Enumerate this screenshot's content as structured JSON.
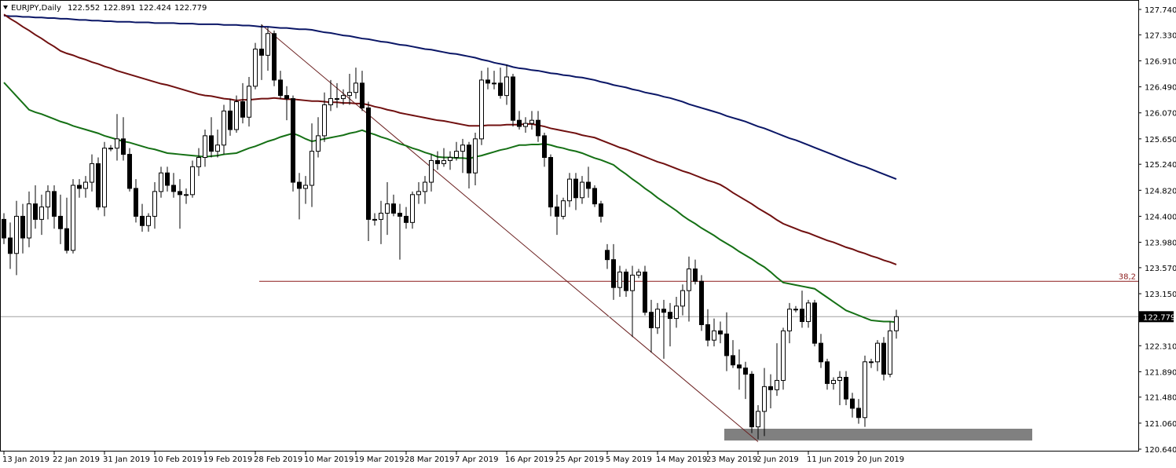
{
  "chart_data": {
    "type": "candlestick",
    "title": "EURJPY,Daily",
    "categories": [
      "13 Jan 2019",
      null,
      null,
      null,
      null,
      null,
      null,
      null,
      "22 Jan 2019",
      null,
      null,
      null,
      null,
      null,
      null,
      null,
      "31 Jan 2019",
      null,
      null,
      null,
      null,
      null,
      null,
      null,
      "10 Feb 2019",
      null,
      null,
      null,
      null,
      null,
      null,
      null,
      "19 Feb 2019",
      null,
      null,
      null,
      null,
      null,
      null,
      null,
      "28 Feb 2019",
      null,
      null,
      null,
      null,
      null,
      null,
      null,
      "10 Mar 2019",
      null,
      null,
      null,
      null,
      null,
      null,
      null,
      "19 Mar 2019",
      null,
      null,
      null,
      null,
      null,
      null,
      null,
      "28 Mar 2019",
      null,
      null,
      null,
      null,
      null,
      null,
      null,
      "7 Apr 2019",
      null,
      null,
      null,
      null,
      null,
      null,
      null,
      "16 Apr 2019",
      null,
      null,
      null,
      null,
      null,
      null,
      null,
      "25 Apr 2019",
      null,
      null,
      null,
      null,
      null,
      null,
      null,
      "5 May 2019",
      null,
      null,
      null,
      null,
      null,
      null,
      null,
      "14 May 2019",
      null,
      null,
      null,
      null,
      null,
      null,
      null,
      "23 May 2019",
      null,
      null,
      null,
      null,
      null,
      null,
      null,
      "2 Jun 2019",
      null,
      null,
      null,
      null,
      null,
      null,
      null,
      "11 Jun 2019",
      null,
      null,
      null,
      null,
      null,
      null,
      null,
      "20 Jun 2019",
      null,
      null,
      null,
      null,
      null,
      null
    ],
    "open": [
      124.35,
      124.05,
      123.8,
      124.4,
      124.05,
      124.6,
      124.35,
      124.55,
      124.8,
      124.4,
      124.2,
      123.85,
      124.9,
      124.85,
      124.95,
      125.25,
      124.55,
      125.5,
      125.5,
      125.65,
      125.4,
      124.85,
      124.4,
      124.25,
      124.4,
      124.8,
      125.1,
      124.9,
      124.8,
      124.75,
      124.75,
      125.2,
      125.35,
      125.7,
      125.45,
      125.55,
      126.1,
      125.8,
      126.25,
      126.0,
      126.5,
      127.1,
      127.0,
      127.35,
      126.6,
      126.35,
      126.3,
      124.95,
      124.85,
      124.9,
      125.45,
      125.7,
      126.2,
      126.3,
      126.3,
      126.35,
      126.4,
      126.55,
      126.15,
      124.35,
      124.35,
      124.45,
      124.6,
      124.45,
      124.4,
      124.3,
      124.75,
      124.8,
      124.95,
      125.3,
      125.25,
      125.3,
      125.35,
      125.45,
      125.55,
      125.1,
      125.65,
      126.6,
      126.55,
      126.55,
      126.35,
      126.65,
      125.95,
      125.85,
      125.9,
      125.95,
      125.7,
      125.35,
      124.55,
      124.4,
      124.65,
      125.0,
      124.7,
      124.95,
      124.85,
      124.6,
      123.85,
      123.7,
      123.25,
      123.5,
      123.2,
      123.45,
      123.5,
      122.85,
      122.6,
      122.9,
      122.85,
      122.75,
      122.95,
      123.2,
      123.55,
      123.35,
      122.65,
      122.4,
      122.55,
      122.5,
      122.15,
      122.0,
      121.95,
      121.85,
      121.0,
      121.25,
      121.65,
      121.6,
      121.75,
      122.55,
      122.9,
      122.9,
      122.7,
      123.0,
      122.35,
      122.05,
      121.7,
      121.75,
      121.8,
      121.45,
      121.3,
      121.15,
      122.05,
      122.05,
      122.35,
      121.85,
      122.552
    ],
    "high": [
      124.45,
      124.3,
      124.65,
      124.6,
      124.8,
      124.9,
      124.75,
      124.9,
      124.9,
      124.75,
      124.7,
      125.0,
      125.0,
      125.05,
      125.4,
      125.35,
      125.6,
      125.55,
      126.05,
      126.0,
      125.5,
      125.0,
      124.6,
      124.45,
      124.95,
      125.2,
      125.2,
      125.1,
      125.0,
      124.85,
      125.3,
      125.5,
      125.8,
      126.0,
      125.8,
      126.2,
      126.3,
      126.35,
      126.55,
      126.65,
      127.2,
      127.5,
      127.45,
      127.4,
      126.75,
      126.5,
      126.35,
      125.1,
      125.05,
      125.9,
      126.0,
      126.4,
      126.6,
      126.55,
      126.45,
      126.7,
      126.8,
      126.75,
      126.25,
      124.45,
      124.65,
      124.95,
      124.75,
      124.6,
      124.55,
      124.8,
      124.95,
      125.05,
      125.4,
      125.45,
      125.5,
      125.45,
      125.6,
      125.65,
      125.6,
      125.75,
      126.75,
      126.8,
      126.75,
      126.8,
      126.85,
      126.7,
      126.1,
      126.0,
      126.1,
      126.1,
      125.75,
      125.4,
      124.75,
      124.7,
      125.1,
      125.1,
      125.05,
      125.2,
      124.9,
      124.65,
      123.95,
      123.95,
      123.6,
      123.55,
      123.6,
      123.55,
      123.6,
      123.05,
      123.0,
      123.05,
      123.0,
      123.1,
      123.3,
      123.75,
      123.7,
      123.45,
      122.9,
      122.75,
      122.7,
      122.85,
      122.4,
      122.25,
      122.05,
      121.9,
      121.35,
      121.95,
      121.85,
      122.35,
      122.6,
      123.0,
      122.95,
      123.2,
      123.05,
      123.05,
      122.5,
      122.1,
      121.8,
      121.9,
      121.9,
      121.55,
      121.45,
      122.15,
      122.1,
      122.4,
      122.45,
      122.7,
      122.891
    ],
    "low": [
      123.95,
      123.55,
      123.45,
      123.8,
      123.9,
      124.2,
      124.1,
      124.35,
      124.2,
      123.95,
      123.8,
      123.8,
      124.7,
      124.7,
      124.8,
      124.5,
      124.4,
      125.45,
      125.3,
      125.3,
      124.8,
      124.3,
      124.15,
      124.15,
      124.2,
      124.7,
      124.8,
      124.7,
      124.2,
      124.6,
      124.7,
      125.05,
      125.2,
      125.35,
      125.35,
      125.4,
      125.7,
      125.75,
      125.9,
      125.85,
      126.45,
      126.6,
      126.75,
      126.5,
      126.3,
      125.95,
      124.8,
      124.35,
      124.6,
      124.55,
      125.35,
      125.6,
      126.1,
      126.15,
      126.2,
      126.2,
      126.3,
      126.1,
      124.0,
      124.25,
      123.95,
      124.1,
      124.4,
      123.7,
      124.2,
      124.2,
      124.6,
      124.6,
      124.8,
      125.15,
      125.2,
      125.15,
      125.3,
      125.1,
      124.85,
      124.9,
      125.55,
      126.45,
      126.45,
      126.3,
      126.2,
      125.85,
      125.8,
      125.75,
      125.8,
      125.6,
      125.2,
      124.4,
      124.1,
      124.35,
      124.55,
      124.5,
      124.6,
      124.7,
      124.55,
      124.3,
      123.55,
      123.05,
      123.1,
      123.1,
      122.45,
      123.4,
      122.8,
      122.2,
      122.5,
      122.1,
      122.3,
      122.6,
      122.8,
      122.7,
      123.3,
      122.55,
      122.3,
      122.3,
      122.35,
      121.9,
      121.95,
      121.6,
      121.45,
      120.9,
      120.8,
      120.85,
      121.3,
      121.5,
      121.6,
      122.35,
      122.85,
      122.6,
      122.6,
      122.3,
      121.95,
      121.6,
      121.6,
      121.35,
      121.35,
      121.15,
      121.05,
      121.0,
      121.95,
      121.9,
      121.75,
      121.8,
      122.424
    ],
    "close": [
      124.05,
      123.8,
      124.4,
      124.05,
      124.6,
      124.35,
      124.55,
      124.8,
      124.4,
      124.2,
      123.85,
      124.9,
      124.85,
      124.95,
      125.25,
      124.55,
      125.5,
      125.5,
      125.65,
      125.4,
      124.85,
      124.4,
      124.25,
      124.4,
      124.8,
      125.1,
      124.9,
      124.8,
      124.75,
      124.75,
      125.2,
      125.35,
      125.7,
      125.45,
      125.55,
      126.1,
      125.8,
      126.25,
      126.0,
      126.5,
      127.1,
      127.0,
      127.35,
      126.6,
      126.35,
      126.3,
      124.95,
      124.85,
      124.9,
      125.45,
      125.7,
      126.2,
      126.3,
      126.3,
      126.35,
      126.4,
      126.55,
      126.15,
      124.35,
      124.35,
      124.45,
      124.6,
      124.45,
      124.4,
      124.3,
      124.75,
      124.8,
      124.95,
      125.3,
      125.25,
      125.3,
      125.35,
      125.45,
      125.55,
      125.1,
      125.65,
      126.6,
      126.55,
      126.55,
      126.35,
      126.65,
      125.95,
      125.85,
      125.9,
      125.95,
      125.7,
      125.35,
      124.55,
      124.4,
      124.65,
      125.0,
      124.7,
      124.95,
      124.85,
      124.6,
      124.4,
      123.7,
      123.25,
      123.5,
      123.2,
      123.45,
      123.5,
      122.85,
      122.6,
      122.9,
      122.85,
      122.75,
      122.95,
      123.2,
      123.55,
      123.35,
      122.65,
      122.4,
      122.55,
      122.5,
      122.15,
      122.0,
      121.95,
      121.85,
      121.0,
      121.25,
      121.65,
      121.6,
      121.75,
      122.55,
      122.9,
      122.9,
      122.7,
      123.0,
      122.35,
      122.05,
      121.7,
      121.75,
      121.8,
      121.45,
      121.3,
      121.15,
      122.05,
      122.05,
      122.35,
      121.85,
      122.55,
      122.779
    ],
    "ma_lines": [
      {
        "color": "#0a1666",
        "values": [
          127.64,
          127.63,
          127.63,
          127.62,
          127.62,
          127.61,
          127.61,
          127.6,
          127.6,
          127.59,
          127.59,
          127.58,
          127.57,
          127.57,
          127.56,
          127.56,
          127.55,
          127.55,
          127.54,
          127.54,
          127.54,
          127.53,
          127.53,
          127.53,
          127.52,
          127.52,
          127.52,
          127.52,
          127.51,
          127.51,
          127.51,
          127.5,
          127.5,
          127.5,
          127.5,
          127.49,
          127.49,
          127.49,
          127.48,
          127.48,
          127.47,
          127.46,
          127.46,
          127.45,
          127.44,
          127.44,
          127.43,
          127.42,
          127.42,
          127.41,
          127.39,
          127.37,
          127.36,
          127.34,
          127.32,
          127.31,
          127.29,
          127.27,
          127.26,
          127.24,
          127.22,
          127.21,
          127.19,
          127.17,
          127.16,
          127.14,
          127.12,
          127.1,
          127.09,
          127.07,
          127.05,
          127.03,
          127.02,
          127.0,
          126.98,
          126.96,
          126.93,
          126.91,
          126.88,
          126.86,
          126.84,
          126.81,
          126.79,
          126.78,
          126.76,
          126.75,
          126.73,
          126.71,
          126.7,
          126.68,
          126.67,
          126.65,
          126.64,
          126.62,
          126.6,
          126.57,
          126.55,
          126.52,
          126.5,
          126.48,
          126.45,
          126.43,
          126.4,
          126.38,
          126.36,
          126.33,
          126.31,
          126.28,
          126.25,
          126.21,
          126.18,
          126.15,
          126.12,
          126.09,
          126.06,
          126.02,
          125.99,
          125.96,
          125.93,
          125.89,
          125.85,
          125.82,
          125.78,
          125.74,
          125.7,
          125.66,
          125.63,
          125.59,
          125.55,
          125.51,
          125.47,
          125.43,
          125.39,
          125.35,
          125.31,
          125.27,
          125.23,
          125.2,
          125.16,
          125.12,
          125.08,
          125.04,
          125.0
        ]
      },
      {
        "color": "#701010",
        "values": [
          127.66,
          127.59,
          127.53,
          127.46,
          127.4,
          127.33,
          127.27,
          127.2,
          127.14,
          127.07,
          127.03,
          127.0,
          126.96,
          126.93,
          126.89,
          126.86,
          126.82,
          126.79,
          126.75,
          126.72,
          126.69,
          126.66,
          126.63,
          126.6,
          126.57,
          126.54,
          126.52,
          126.49,
          126.46,
          126.43,
          126.4,
          126.37,
          126.35,
          126.34,
          126.32,
          126.3,
          126.29,
          126.27,
          126.28,
          126.28,
          126.29,
          126.3,
          126.3,
          126.31,
          126.3,
          126.29,
          126.29,
          126.28,
          126.27,
          126.26,
          126.26,
          126.25,
          126.24,
          126.24,
          126.23,
          126.23,
          126.22,
          126.22,
          126.2,
          126.17,
          126.15,
          126.12,
          126.1,
          126.07,
          126.05,
          126.03,
          126.01,
          125.99,
          125.97,
          125.95,
          125.94,
          125.92,
          125.9,
          125.88,
          125.86,
          125.86,
          125.86,
          125.87,
          125.87,
          125.87,
          125.88,
          125.88,
          125.88,
          125.89,
          125.89,
          125.87,
          125.85,
          125.82,
          125.8,
          125.78,
          125.76,
          125.74,
          125.71,
          125.69,
          125.67,
          125.63,
          125.59,
          125.55,
          125.51,
          125.48,
          125.44,
          125.4,
          125.36,
          125.32,
          125.28,
          125.25,
          125.21,
          125.17,
          125.13,
          125.1,
          125.06,
          125.02,
          124.98,
          124.95,
          124.91,
          124.85,
          124.78,
          124.72,
          124.66,
          124.6,
          124.53,
          124.47,
          124.41,
          124.34,
          124.28,
          124.24,
          124.2,
          124.16,
          124.13,
          124.09,
          124.05,
          124.01,
          123.98,
          123.94,
          123.9,
          123.87,
          123.83,
          123.8,
          123.76,
          123.73,
          123.69,
          123.66,
          123.62
        ]
      },
      {
        "color": "#157015",
        "values": [
          126.56,
          126.45,
          126.34,
          126.23,
          126.12,
          126.08,
          126.05,
          126.01,
          125.97,
          125.93,
          125.9,
          125.86,
          125.83,
          125.8,
          125.77,
          125.74,
          125.7,
          125.67,
          125.64,
          125.61,
          125.59,
          125.56,
          125.53,
          125.5,
          125.48,
          125.45,
          125.42,
          125.41,
          125.4,
          125.39,
          125.38,
          125.37,
          125.36,
          125.37,
          125.38,
          125.4,
          125.41,
          125.42,
          125.46,
          125.5,
          125.53,
          125.57,
          125.61,
          125.64,
          125.68,
          125.71,
          125.74,
          125.7,
          125.65,
          125.61,
          125.63,
          125.65,
          125.67,
          125.69,
          125.71,
          125.74,
          125.76,
          125.79,
          125.75,
          125.72,
          125.68,
          125.65,
          125.61,
          125.57,
          125.54,
          125.5,
          125.47,
          125.43,
          125.4,
          125.36,
          125.35,
          125.35,
          125.34,
          125.34,
          125.33,
          125.36,
          125.38,
          125.41,
          125.44,
          125.47,
          125.49,
          125.52,
          125.55,
          125.55,
          125.56,
          125.56,
          125.57,
          125.55,
          125.52,
          125.5,
          125.47,
          125.45,
          125.42,
          125.38,
          125.34,
          125.31,
          125.27,
          125.23,
          125.15,
          125.08,
          125.0,
          124.93,
          124.85,
          124.78,
          124.7,
          124.63,
          124.56,
          124.49,
          124.41,
          124.34,
          124.28,
          124.21,
          124.15,
          124.09,
          124.02,
          123.96,
          123.9,
          123.83,
          123.77,
          123.71,
          123.64,
          123.58,
          123.5,
          123.41,
          123.33,
          123.31,
          123.29,
          123.27,
          123.25,
          123.23,
          123.16,
          123.09,
          123.02,
          122.95,
          122.88,
          122.84,
          122.8,
          122.76,
          122.72,
          122.71,
          122.7,
          122.7,
          122.69
        ]
      }
    ],
    "up_color": "#ffffff",
    "down_color": "#000000",
    "trendline": {
      "color": "#6b2020",
      "start": 127.49,
      "end": 120.76
    },
    "fib_level": {
      "label": "38,2",
      "value": 123.35,
      "color": "#8b1a1a"
    },
    "price_line_color": "#a0a0a0",
    "zone": {
      "low": 120.78,
      "high": 120.97,
      "color": "#808080"
    },
    "ylim": [
      120.64,
      127.74
    ],
    "yticks": [
      {
        "value": 127.74,
        "label": "127.740"
      },
      {
        "value": 127.33,
        "label": "127.330"
      },
      {
        "value": 126.91,
        "label": "126.910"
      },
      {
        "value": 126.49,
        "label": "126.490"
      },
      {
        "value": 126.07,
        "label": "126.070"
      },
      {
        "value": 125.65,
        "label": "125.650"
      },
      {
        "value": 125.24,
        "label": "125.240"
      },
      {
        "value": 124.82,
        "label": "124.820"
      },
      {
        "value": 124.4,
        "label": "124.400"
      },
      {
        "value": 123.98,
        "label": "123.980"
      },
      {
        "value": 123.57,
        "label": "123.570"
      },
      {
        "value": 123.15,
        "label": "123.150"
      },
      {
        "value": 122.31,
        "label": "122.310"
      },
      {
        "value": 121.89,
        "label": "121.890"
      },
      {
        "value": 121.48,
        "label": "121.480"
      },
      {
        "value": 121.06,
        "label": "121.060"
      },
      {
        "value": 120.64,
        "label": "120.640"
      }
    ],
    "grid": false
  }
}
